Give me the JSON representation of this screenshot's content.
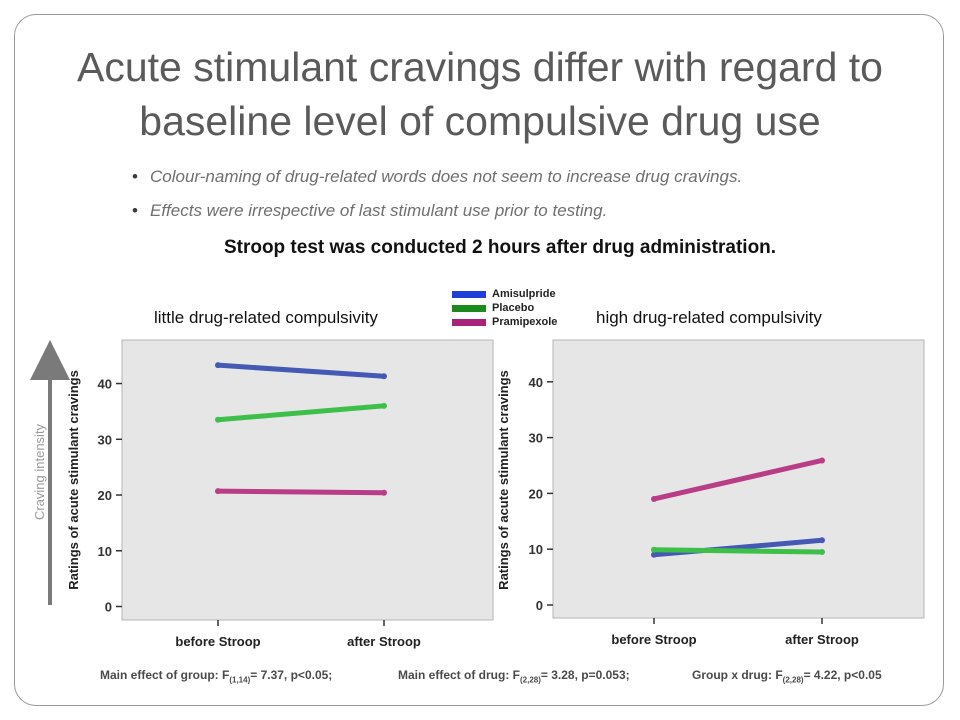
{
  "title_line1": "Acute stimulant cravings differ with regard to",
  "title_line2": "baseline level of compulsive drug use",
  "bullets": [
    "Colour-naming of drug-related words does not seem to increase drug cravings.",
    "Effects were irrespective of last stimulant use prior to testing."
  ],
  "subheading": "Stroop test was conducted 2 hours after drug administration.",
  "legend": [
    {
      "label": "Amisulpride",
      "color": "#1f3fd8"
    },
    {
      "label": "Placebo",
      "color": "#1a8a1a"
    },
    {
      "label": "Pramipexole",
      "color": "#a8237a"
    }
  ],
  "intensity_label": "Craving intensity",
  "stats": {
    "left": {
      "pre": "Main effect of group: F",
      "sub": "(1,14)",
      "post": "= 7.37, p<0.05;"
    },
    "mid": {
      "pre": "Main effect of drug: F",
      "sub": "(2,28)",
      "post": "= 3.28, p=0.053;"
    },
    "right": {
      "pre": "Group x drug: F",
      "sub": "(2,28)",
      "post": "= 4.22, p<0.05"
    }
  },
  "colors": {
    "Amisulpride": "#4459b3",
    "Placebo": "#3dbf4a",
    "Pramipexole": "#b83c86",
    "plot_bg": "#e6e6e6"
  },
  "chart_data": [
    {
      "type": "line",
      "panel_title": "little drug-related compulsivity",
      "categories": [
        "before Stroop",
        "after Stroop"
      ],
      "ylabel": "Ratings of acute stimulant cravings",
      "yticks": [
        "0",
        "10",
        "20",
        "30",
        "40"
      ],
      "ylim": [
        0,
        46
      ],
      "series": [
        {
          "name": "Amisulpride",
          "values": [
            43.3,
            41.3
          ]
        },
        {
          "name": "Placebo",
          "values": [
            33.5,
            36.0
          ]
        },
        {
          "name": "Pramipexole",
          "values": [
            20.7,
            20.4
          ]
        }
      ]
    },
    {
      "type": "line",
      "panel_title": "high drug-related compulsivity",
      "categories": [
        "before Stroop",
        "after Stroop"
      ],
      "ylabel": "Ratings of acute stimulant cravings",
      "yticks": [
        "0",
        "10",
        "20",
        "30",
        "40"
      ],
      "ylim": [
        0,
        46
      ],
      "series": [
        {
          "name": "Amisulpride",
          "values": [
            9.0,
            11.6
          ]
        },
        {
          "name": "Placebo",
          "values": [
            9.9,
            9.5
          ]
        },
        {
          "name": "Pramipexole",
          "values": [
            19.0,
            25.9
          ]
        }
      ]
    }
  ]
}
